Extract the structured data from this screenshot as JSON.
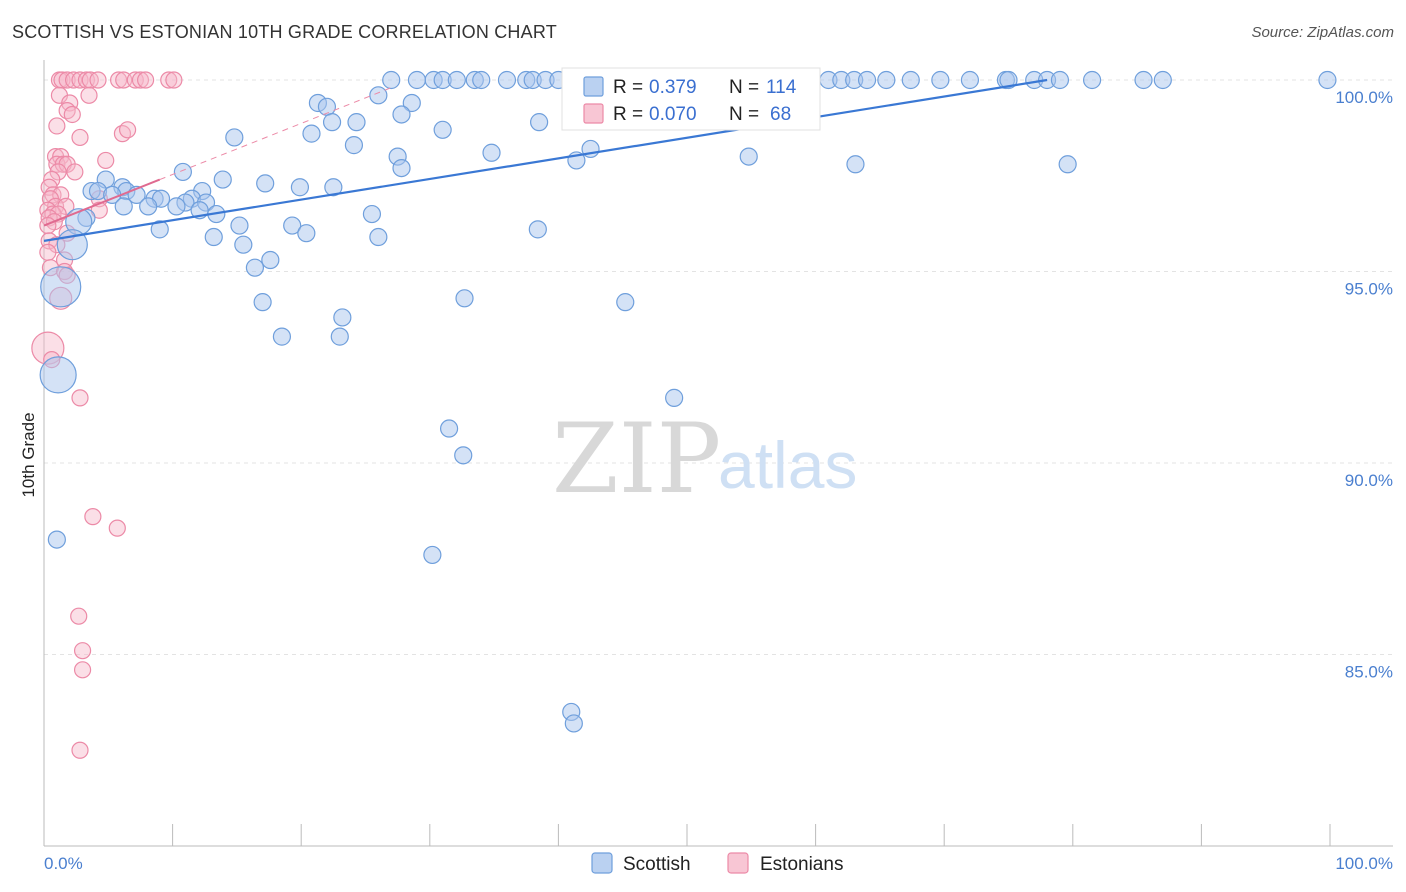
{
  "header": {
    "title": "SCOTTISH VS ESTONIAN 10TH GRADE CORRELATION CHART",
    "source": "Source: ZipAtlas.com"
  },
  "watermark": {
    "zip": "ZIP",
    "atlas": "atlas"
  },
  "colors": {
    "scottish_fill": "#a9c6ee",
    "scottish_stroke": "#6f9fdc",
    "scottish_line": "#3a78d4",
    "estonian_fill": "#f6b8c9",
    "estonian_stroke": "#ec8aa7",
    "estonian_line": "#e06a90",
    "tick_label": "#4a7fcf",
    "grid": "#e3e3e3"
  },
  "stats": {
    "scottish": {
      "r_label": "R =",
      "r_value": "0.379",
      "n_label": "N =",
      "n_value": "114"
    },
    "estonian": {
      "r_label": "R =",
      "r_value": "0.070",
      "n_label": "N =",
      "n_value": "68"
    }
  },
  "legend": {
    "scottish": "Scottish",
    "estonian": "Estonians"
  },
  "chart_data": {
    "type": "scatter",
    "title": "SCOTTISH VS ESTONIAN 10TH GRADE CORRELATION CHART",
    "xlabel": "",
    "ylabel": "10th Grade",
    "xlim": [
      0,
      100
    ],
    "ylim": [
      80.5,
      100.5
    ],
    "x_tick_labels": {
      "left": "0.0%",
      "right": "100.0%"
    },
    "y_ticks": [
      {
        "value": 100,
        "label": "100.0%"
      },
      {
        "value": 95,
        "label": "95.0%"
      },
      {
        "value": 90,
        "label": "90.0%"
      },
      {
        "value": 85,
        "label": "85.0%"
      }
    ],
    "grid": true,
    "legend_position": "bottom-center",
    "series": [
      {
        "name": "Scottish",
        "trend": {
          "x": [
            0,
            78
          ],
          "y": [
            95.8,
            100.0
          ]
        },
        "points": [
          [
            27,
            100
          ],
          [
            29,
            100
          ],
          [
            30.3,
            100
          ],
          [
            31,
            100
          ],
          [
            32.1,
            100
          ],
          [
            33.5,
            100
          ],
          [
            34,
            100
          ],
          [
            36,
            100
          ],
          [
            37.5,
            100
          ],
          [
            38,
            100
          ],
          [
            39,
            100
          ],
          [
            40,
            100
          ],
          [
            42,
            100
          ],
          [
            43,
            100
          ],
          [
            44,
            100
          ],
          [
            45,
            100
          ],
          [
            46,
            100
          ],
          [
            47.4,
            100
          ],
          [
            49,
            100
          ],
          [
            50,
            100
          ],
          [
            51,
            100
          ],
          [
            52,
            100
          ],
          [
            53,
            100
          ],
          [
            54,
            100
          ],
          [
            55,
            100
          ],
          [
            57,
            100
          ],
          [
            58,
            100
          ],
          [
            59.5,
            100
          ],
          [
            61,
            100
          ],
          [
            62,
            100
          ],
          [
            63,
            100
          ],
          [
            64,
            100
          ],
          [
            65.5,
            100
          ],
          [
            67.4,
            100
          ],
          [
            69.7,
            100
          ],
          [
            72,
            100
          ],
          [
            74.8,
            100
          ],
          [
            75,
            100
          ],
          [
            77,
            100
          ],
          [
            78,
            100
          ],
          [
            79,
            100
          ],
          [
            81.5,
            100
          ],
          [
            85.5,
            100
          ],
          [
            87,
            100
          ],
          [
            99.8,
            100
          ],
          [
            26,
            99.6
          ],
          [
            28.6,
            99.4
          ],
          [
            21.3,
            99.4
          ],
          [
            22,
            99.3
          ],
          [
            27.8,
            99.1
          ],
          [
            31,
            98.7
          ],
          [
            22.4,
            98.9
          ],
          [
            24.3,
            98.9
          ],
          [
            38.5,
            98.9
          ],
          [
            20.8,
            98.6
          ],
          [
            14.8,
            98.5
          ],
          [
            24.1,
            98.3
          ],
          [
            34.8,
            98.1
          ],
          [
            27.5,
            98.0
          ],
          [
            42.5,
            98.2
          ],
          [
            54.8,
            98.0
          ],
          [
            41.4,
            97.9
          ],
          [
            63.1,
            97.8
          ],
          [
            79.6,
            97.8
          ],
          [
            27.8,
            97.7
          ],
          [
            10.8,
            97.6
          ],
          [
            13.9,
            97.4
          ],
          [
            4.8,
            97.4
          ],
          [
            17.2,
            97.3
          ],
          [
            22.5,
            97.2
          ],
          [
            19.9,
            97.2
          ],
          [
            3.7,
            97.1
          ],
          [
            4.2,
            97.1
          ],
          [
            6.1,
            97.2
          ],
          [
            12.3,
            97.1
          ],
          [
            6.4,
            97.1
          ],
          [
            7.2,
            97.0
          ],
          [
            5.3,
            97.0
          ],
          [
            8.6,
            96.9
          ],
          [
            9.1,
            96.9
          ],
          [
            11.5,
            96.9
          ],
          [
            11.0,
            96.8
          ],
          [
            12.6,
            96.8
          ],
          [
            10.3,
            96.7
          ],
          [
            8.1,
            96.7
          ],
          [
            6.2,
            96.7
          ],
          [
            12.1,
            96.6
          ],
          [
            13.4,
            96.5
          ],
          [
            3.3,
            96.4
          ],
          [
            2.7,
            96.3
          ],
          [
            25.5,
            96.5
          ],
          [
            9.0,
            96.1
          ],
          [
            15.2,
            96.2
          ],
          [
            19.3,
            96.2
          ],
          [
            20.4,
            96.0
          ],
          [
            38.4,
            96.1
          ],
          [
            13.2,
            95.9
          ],
          [
            26.0,
            95.9
          ],
          [
            15.5,
            95.7
          ],
          [
            2.2,
            95.7
          ],
          [
            17.6,
            95.3
          ],
          [
            16.4,
            95.1
          ],
          [
            1.3,
            94.6
          ],
          [
            17.0,
            94.2
          ],
          [
            32.7,
            94.3
          ],
          [
            45.2,
            94.2
          ],
          [
            23.2,
            93.8
          ],
          [
            18.5,
            93.3
          ],
          [
            23.0,
            93.3
          ],
          [
            1.1,
            92.3
          ],
          [
            49.0,
            91.7
          ],
          [
            31.5,
            90.9
          ],
          [
            32.6,
            90.2
          ],
          [
            1.0,
            88.0
          ],
          [
            30.2,
            87.6
          ],
          [
            41.0,
            83.5
          ],
          [
            41.2,
            83.2
          ]
        ]
      },
      {
        "name": "Estonians",
        "trend": {
          "x": [
            0,
            9
          ],
          "y": [
            96.2,
            97.4
          ]
        },
        "points": [
          [
            1.2,
            100
          ],
          [
            1.4,
            100
          ],
          [
            1.8,
            100
          ],
          [
            2.3,
            100
          ],
          [
            2.8,
            100
          ],
          [
            3.3,
            100
          ],
          [
            3.6,
            100
          ],
          [
            4.2,
            100
          ],
          [
            5.8,
            100
          ],
          [
            6.2,
            100
          ],
          [
            7.1,
            100
          ],
          [
            7.5,
            100
          ],
          [
            7.9,
            100
          ],
          [
            9.7,
            100
          ],
          [
            10.1,
            100
          ],
          [
            1.2,
            99.6
          ],
          [
            3.5,
            99.6
          ],
          [
            2.0,
            99.4
          ],
          [
            1.8,
            99.2
          ],
          [
            2.2,
            99.1
          ],
          [
            1.0,
            98.8
          ],
          [
            6.1,
            98.6
          ],
          [
            2.8,
            98.5
          ],
          [
            6.5,
            98.7
          ],
          [
            0.9,
            98.0
          ],
          [
            1.3,
            98.0
          ],
          [
            1.0,
            97.8
          ],
          [
            1.5,
            97.8
          ],
          [
            1.8,
            97.8
          ],
          [
            4.8,
            97.9
          ],
          [
            1.1,
            97.6
          ],
          [
            2.4,
            97.6
          ],
          [
            0.6,
            97.4
          ],
          [
            0.4,
            97.2
          ],
          [
            0.7,
            97.0
          ],
          [
            1.3,
            97.0
          ],
          [
            0.5,
            96.9
          ],
          [
            4.3,
            96.9
          ],
          [
            0.9,
            96.7
          ],
          [
            1.7,
            96.7
          ],
          [
            0.3,
            96.6
          ],
          [
            0.7,
            96.5
          ],
          [
            1.1,
            96.5
          ],
          [
            4.3,
            96.6
          ],
          [
            0.4,
            96.4
          ],
          [
            0.8,
            96.3
          ],
          [
            0.3,
            96.2
          ],
          [
            1.8,
            96.0
          ],
          [
            0.4,
            95.8
          ],
          [
            1.0,
            95.7
          ],
          [
            0.3,
            95.5
          ],
          [
            1.6,
            95.3
          ],
          [
            0.5,
            95.1
          ],
          [
            1.6,
            95.0
          ],
          [
            1.8,
            94.9
          ],
          [
            1.3,
            94.3
          ],
          [
            0.3,
            93.0
          ],
          [
            0.6,
            92.7
          ],
          [
            2.8,
            91.7
          ],
          [
            3.8,
            88.6
          ],
          [
            5.7,
            88.3
          ],
          [
            2.7,
            86.0
          ],
          [
            3.0,
            85.1
          ],
          [
            3.0,
            84.6
          ],
          [
            2.8,
            82.5
          ]
        ]
      }
    ]
  }
}
